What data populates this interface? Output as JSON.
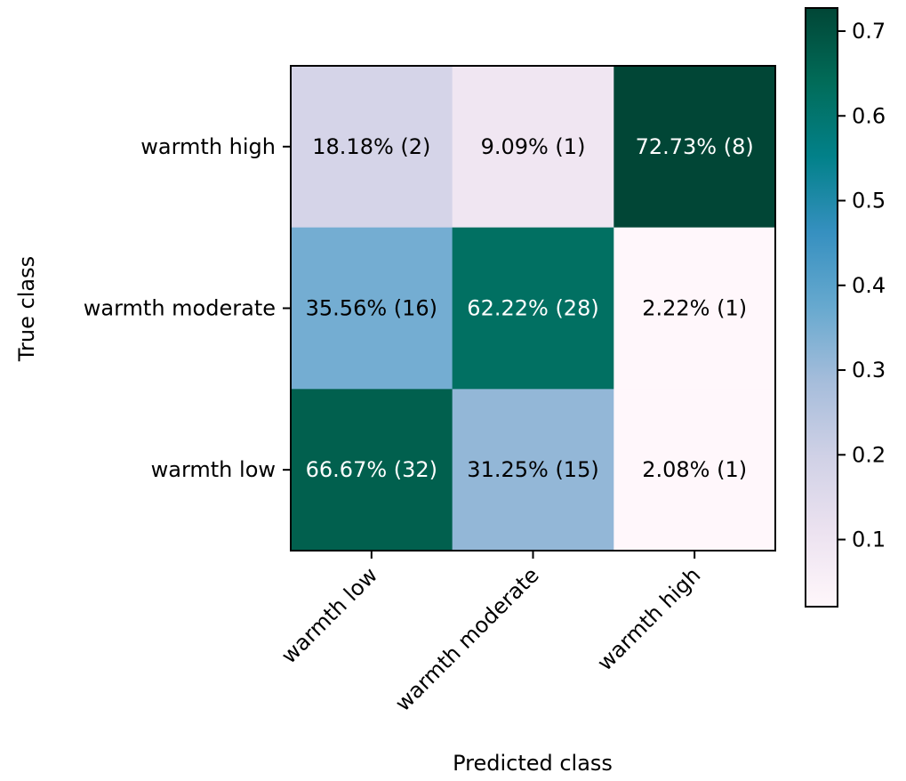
{
  "chart_data": {
    "type": "heatmap",
    "title": "",
    "xlabel": "Predicted class",
    "ylabel": "True class",
    "x_categories": [
      "warmth low",
      "warmth moderate",
      "warmth high"
    ],
    "y_categories": [
      "warmth high",
      "warmth moderate",
      "warmth low"
    ],
    "values": [
      [
        0.1818,
        0.0909,
        0.7273
      ],
      [
        0.3556,
        0.6222,
        0.0222
      ],
      [
        0.6667,
        0.3125,
        0.0208
      ]
    ],
    "cell_labels": [
      [
        "18.18% (2)",
        "9.09% (1)",
        "72.73% (8)"
      ],
      [
        "35.56% (16)",
        "62.22% (28)",
        "2.22% (1)"
      ],
      [
        "66.67% (32)",
        "31.25% (15)",
        "2.08% (1)"
      ]
    ],
    "colormap": "PuBuGn",
    "colorbar": {
      "range": [
        0.0208,
        0.7273
      ],
      "ticks": [
        "0.1",
        "0.2",
        "0.3",
        "0.4",
        "0.5",
        "0.6",
        "0.7"
      ]
    }
  }
}
